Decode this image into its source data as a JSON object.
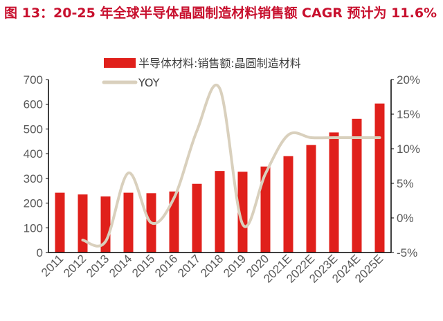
{
  "title": "图 13：20-25 年全球半导体晶圆制造材料销售额 CAGR 预计为 11.6%",
  "chart_data": {
    "type": "bar",
    "title": "图 13：20-25 年全球半导体晶圆制造材料销售额 CAGR 预计为 11.6%",
    "categories": [
      "2011",
      "2012",
      "2013",
      "2014",
      "2015",
      "2016",
      "2017",
      "2018",
      "2019",
      "2020",
      "2021E",
      "2022E",
      "2023E",
      "2024E",
      "2025E"
    ],
    "series": [
      {
        "name": "半导体材料:销售额:晶圆制造材料",
        "type": "bar",
        "axis": "left",
        "color": "#e0201b",
        "values": [
          242,
          235,
          227,
          242,
          240,
          247,
          278,
          330,
          327,
          348,
          390,
          435,
          486,
          541,
          603
        ]
      },
      {
        "name": "YOY",
        "type": "line",
        "axis": "right",
        "color": "#d9d0bd",
        "values": [
          null,
          -3.2,
          -3.4,
          6.5,
          -0.7,
          2.9,
          12.6,
          18.7,
          -0.9,
          6.4,
          12.0,
          11.6,
          11.6,
          11.6,
          11.6
        ]
      }
    ],
    "ylim": [
      0,
      700
    ],
    "yticks": [
      0,
      100,
      200,
      300,
      400,
      500,
      600,
      700
    ],
    "y2lim": [
      -5,
      20
    ],
    "y2ticks": [
      "-5%",
      "0%",
      "5%",
      "10%",
      "15%",
      "20%"
    ],
    "legend": "top",
    "grid": false
  }
}
